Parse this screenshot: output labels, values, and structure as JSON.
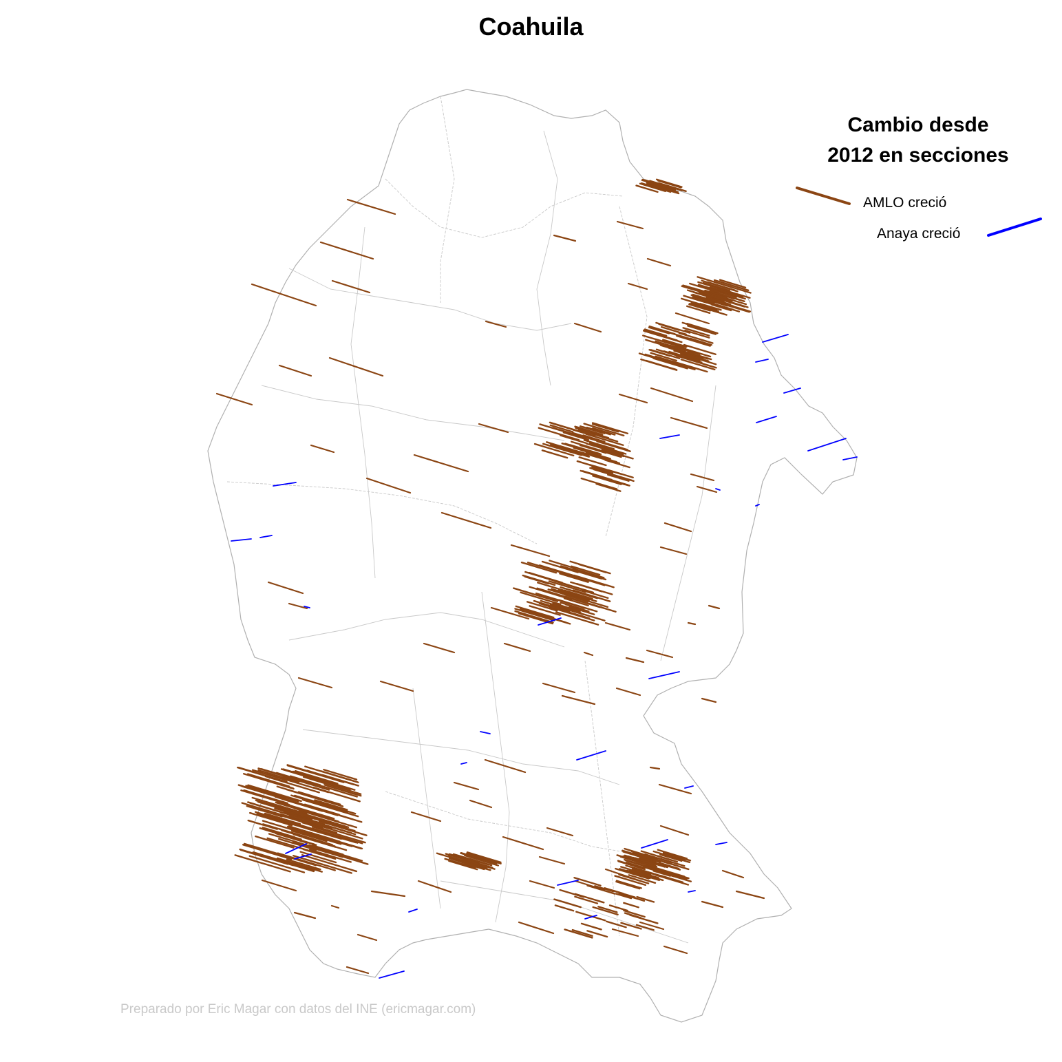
{
  "title": "Coahuila",
  "legend": {
    "title_line1": "Cambio desde",
    "title_line2": "2012 en secciones",
    "items": [
      {
        "label": "AMLO creció",
        "color": "#8B4513"
      },
      {
        "label": "Anaya creció",
        "color": "#0000FF"
      }
    ]
  },
  "credit": "Preparado por Eric Magar con datos del INE (ericmagar.com)",
  "colors": {
    "amlo": "#8B4513",
    "anaya": "#0000FF",
    "municipal_border": "#c8c8c8",
    "state_border": "#b0b0b0",
    "background": "#ffffff"
  }
}
